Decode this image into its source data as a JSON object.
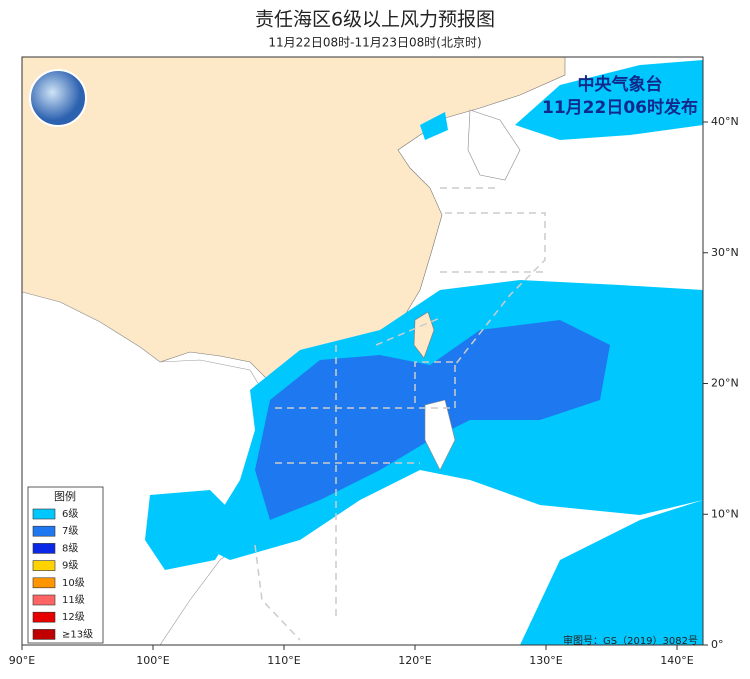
{
  "header": {
    "title": "责任海区6级以上风力预报图",
    "subtitle": "11月22日08时-11月23日08时(北京时)"
  },
  "issuer": {
    "name": "中央气象台",
    "time": "11月22日06时发布"
  },
  "axes": {
    "x_ticks": [
      {
        "value": 90,
        "label": "90°E"
      },
      {
        "value": 100,
        "label": "100°E"
      },
      {
        "value": 110,
        "label": "110°E"
      },
      {
        "value": 120,
        "label": "120°E"
      },
      {
        "value": 130,
        "label": "130°E"
      },
      {
        "value": 140,
        "label": "140°E"
      }
    ],
    "y_ticks": [
      {
        "value": 0,
        "label": "0°"
      },
      {
        "value": 10,
        "label": "10°N"
      },
      {
        "value": 20,
        "label": "20°N"
      },
      {
        "value": 30,
        "label": "30°N"
      },
      {
        "value": 40,
        "label": "40°N"
      }
    ]
  },
  "legend": {
    "title": "图例",
    "items": [
      {
        "label": "6级",
        "color": "#00c8ff"
      },
      {
        "label": "7级",
        "color": "#1e78f0"
      },
      {
        "label": "8级",
        "color": "#0a28e6"
      },
      {
        "label": "9级",
        "color": "#ffd200"
      },
      {
        "label": "10级",
        "color": "#ff9600"
      },
      {
        "label": "11级",
        "color": "#ff6464"
      },
      {
        "label": "12级",
        "color": "#e60000"
      },
      {
        "label": "≥13级",
        "color": "#c00000"
      }
    ]
  },
  "footer": {
    "approval": "审图号：GS（2019）3082号"
  }
}
